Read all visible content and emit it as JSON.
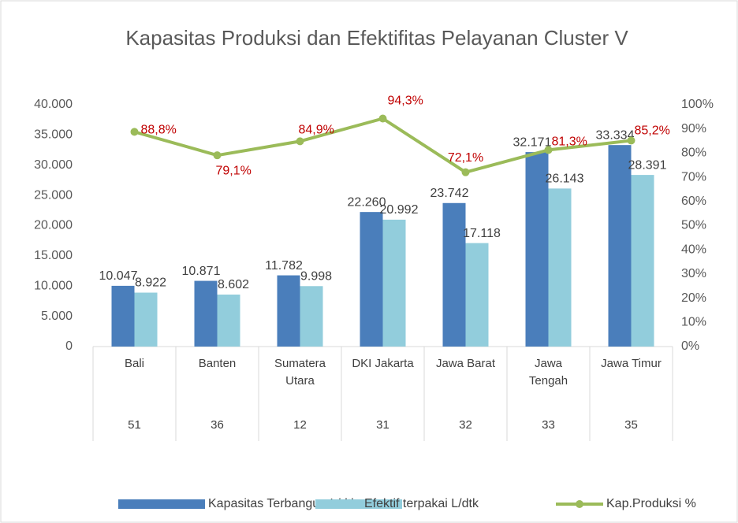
{
  "chart_data": {
    "type": "bar_line",
    "title": "Kapasitas Produksi dan Efektifitas Pelayanan Cluster V",
    "categories": [
      "Bali",
      "Banten",
      "Sumatera Utara",
      "DKI Jakarta",
      "Jawa Barat",
      "Jawa Tengah",
      "Jawa Timur"
    ],
    "category_codes": [
      "51",
      "36",
      "12",
      "31",
      "32",
      "33",
      "35"
    ],
    "series": [
      {
        "name": "Kapasitas Terbangun L/dtk",
        "type": "bar",
        "color": "#4a7ebb",
        "values": [
          10047,
          10871,
          11782,
          22260,
          23742,
          32171,
          33334
        ],
        "value_labels": [
          "10.047",
          "10.871",
          "11.782",
          "22.260",
          "23.742",
          "32.171",
          "33.334"
        ]
      },
      {
        "name": "Efektif terpakai L/dtk",
        "type": "bar",
        "color": "#92cddc",
        "values": [
          8922,
          8602,
          9998,
          20992,
          17118,
          26143,
          28391
        ],
        "value_labels": [
          "8.922",
          "8.602",
          "9.998",
          "20.992",
          "17.118",
          "26.143",
          "28.391"
        ]
      },
      {
        "name": "Kap.Produksi %",
        "type": "line",
        "axis": "y2",
        "color": "#9bbb59",
        "label_color": "#c00000",
        "values": [
          88.8,
          79.1,
          84.9,
          94.3,
          72.1,
          81.3,
          85.2
        ],
        "value_labels": [
          "88,8%",
          "79,1%",
          "84,9%",
          "94,3%",
          "72,1%",
          "81,3%",
          "85,2%"
        ]
      }
    ],
    "ylim": [
      0,
      40000
    ],
    "yticks": [
      0,
      {
        "value": 5000,
        "label": "5.000"
      },
      {
        "value": 10000,
        "label": "10.000"
      },
      {
        "value": 15000,
        "label": "15.000"
      },
      {
        "value": 20000,
        "label": "20.000"
      },
      {
        "value": 25000,
        "label": "25.000"
      },
      {
        "value": 30000,
        "label": "30.000"
      },
      {
        "value": 35000,
        "label": "35.000"
      },
      {
        "value": 40000,
        "label": "40.000"
      }
    ],
    "y2lim": [
      0,
      100
    ],
    "y2ticks": [
      {
        "value": 0,
        "label": "0%"
      },
      {
        "value": 10,
        "label": "10%"
      },
      {
        "value": 20,
        "label": "20%"
      },
      {
        "value": 30,
        "label": "30%"
      },
      {
        "value": 40,
        "label": "40%"
      },
      {
        "value": 50,
        "label": "50%"
      },
      {
        "value": 60,
        "label": "60%"
      },
      {
        "value": 70,
        "label": "70%"
      },
      {
        "value": 80,
        "label": "80%"
      },
      {
        "value": 90,
        "label": "90%"
      },
      {
        "value": 100,
        "label": "100%"
      }
    ],
    "legend": "bottom"
  }
}
